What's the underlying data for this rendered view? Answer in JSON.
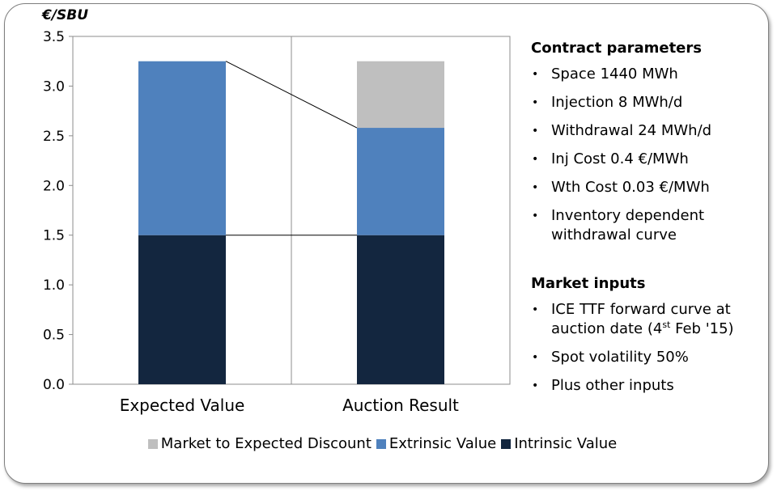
{
  "unit_label": "€/SBU",
  "chart_data": {
    "type": "bar",
    "stacked": true,
    "categories": [
      "Expected Value",
      "Auction Result"
    ],
    "series": [
      {
        "name": "Intrinsic Value",
        "color": "#13263f",
        "values": [
          1.5,
          1.5
        ]
      },
      {
        "name": "Extrinsic Value",
        "color": "#4f81bd",
        "values": [
          1.75,
          1.08
        ]
      },
      {
        "name": "Market to Expected Discount",
        "color": "#bfbfbf",
        "values": [
          0,
          0.67
        ]
      }
    ],
    "legend_order": [
      "Market to Expected Discount",
      "Extrinsic Value",
      "Intrinsic Value"
    ],
    "y_ticks": [
      "0.0",
      "0.5",
      "1.0",
      "1.5",
      "2.0",
      "2.5",
      "3.0",
      "3.5"
    ],
    "ylim": [
      0,
      3.5
    ],
    "legend_position": "bottom",
    "grid": false,
    "connector_lines": true
  },
  "panel": {
    "contract": {
      "heading": "Contract parameters",
      "items": [
        "Space 1440 MWh",
        "Injection 8 MWh/d",
        "Withdrawal 24 MWh/d",
        "Inj Cost 0.4 €/MWh",
        "Wth Cost 0.03 €/MWh",
        "Inventory dependent withdrawal curve"
      ]
    },
    "market": {
      "heading": "Market inputs",
      "item1_pre": "ICE TTF forward curve at auction date (4",
      "item1_sup": "st",
      "item1_post": " Feb '15)",
      "item2": "Spot volatility 50%",
      "item3": "Plus other inputs"
    }
  }
}
